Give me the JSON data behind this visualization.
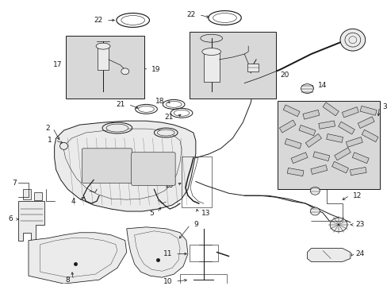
{
  "bg_color": "#ffffff",
  "line_color": "#1a1a1a",
  "gray_fill": "#ebebeb",
  "dark_fill": "#d8d8d8",
  "figsize": [
    4.89,
    3.6
  ],
  "dpi": 100
}
